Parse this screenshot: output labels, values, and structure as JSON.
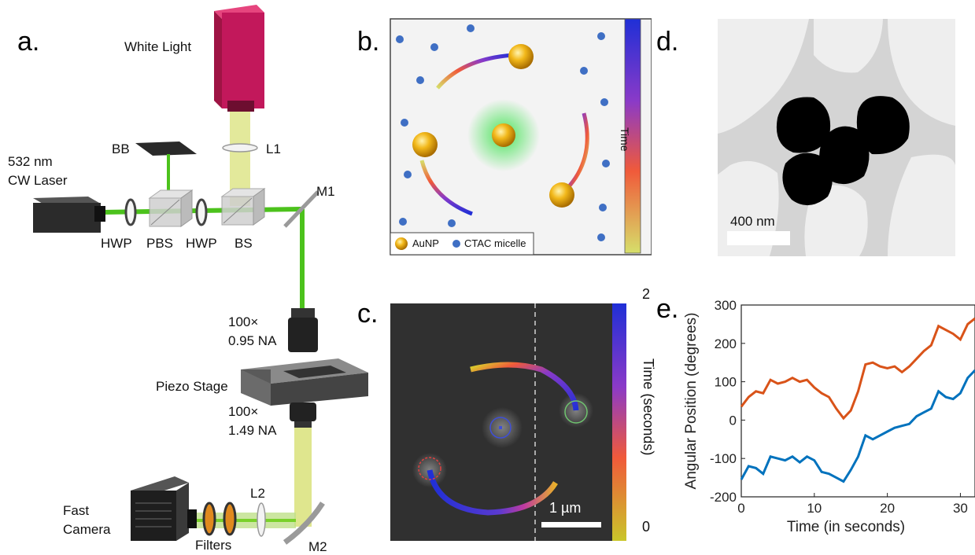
{
  "panels": {
    "a": {
      "label": "a.",
      "components": {
        "white_light": "White Light",
        "laser_line1": "532 nm",
        "laser_line2": "CW Laser",
        "bb": "BB",
        "l1": "L1",
        "m1": "M1",
        "hwp1": "HWP",
        "pbs": "PBS",
        "hwp2": "HWP",
        "bs": "BS",
        "obj_top_line1": "100×",
        "obj_top_line2": "0.95 NA",
        "piezo": "Piezo Stage",
        "obj_bot_line1": "100×",
        "obj_bot_line2": "1.49 NA",
        "camera_line1": "Fast",
        "camera_line2": "Camera",
        "filters": "Filters",
        "l2": "L2",
        "m2": "M2"
      }
    },
    "b": {
      "label": "b.",
      "legend": {
        "aunp": "AuNP",
        "micelle": "CTAC micelle"
      },
      "colorbar_label": "Time"
    },
    "c": {
      "label": "c.",
      "scalebar": "1 µm",
      "colorbar_label": "Time (seconds)",
      "colorbar_max": "2",
      "colorbar_min": "0"
    },
    "d": {
      "label": "d.",
      "scalebar": "400 nm"
    },
    "e": {
      "label": "e."
    }
  },
  "colors": {
    "laser_green": "#4cc21c",
    "white_light_beam": "#d9e27a",
    "light_source": "#c2185b",
    "gold": "#f2b81a",
    "micelle": "#3f6fc4",
    "series_orange": "#d95319",
    "series_blue": "#0072bd"
  },
  "chart_data": {
    "type": "line",
    "xlabel": "Time (in seconds)",
    "ylabel": "Angular Position (degrees)",
    "xlim": [
      0,
      32
    ],
    "ylim": [
      -200,
      300
    ],
    "xticks": [
      0,
      10,
      20,
      30
    ],
    "yticks": [
      -200,
      -100,
      0,
      100,
      200,
      300
    ],
    "grid": false,
    "series": [
      {
        "color": "#d95319",
        "x": [
          0,
          1,
          2,
          3,
          4,
          5,
          6,
          7,
          8,
          9,
          10,
          11,
          12,
          13,
          14,
          15,
          16,
          17,
          18,
          19,
          20,
          21,
          22,
          23,
          24,
          25,
          26,
          27,
          28,
          29,
          30,
          31,
          32
        ],
        "y": [
          35,
          60,
          75,
          70,
          105,
          95,
          100,
          110,
          100,
          105,
          85,
          70,
          60,
          30,
          5,
          25,
          75,
          145,
          150,
          140,
          135,
          140,
          125,
          140,
          160,
          180,
          195,
          245,
          235,
          225,
          210,
          250,
          265
        ]
      },
      {
        "color": "#0072bd",
        "x": [
          0,
          1,
          2,
          3,
          4,
          5,
          6,
          7,
          8,
          9,
          10,
          11,
          12,
          13,
          14,
          15,
          16,
          17,
          18,
          19,
          20,
          21,
          22,
          23,
          24,
          25,
          26,
          27,
          28,
          29,
          30,
          31,
          32
        ],
        "y": [
          -155,
          -120,
          -125,
          -140,
          -95,
          -100,
          -105,
          -95,
          -110,
          -95,
          -105,
          -135,
          -140,
          -150,
          -160,
          -130,
          -95,
          -40,
          -50,
          -40,
          -30,
          -20,
          -15,
          -10,
          10,
          20,
          30,
          75,
          60,
          55,
          70,
          110,
          130
        ]
      }
    ]
  }
}
